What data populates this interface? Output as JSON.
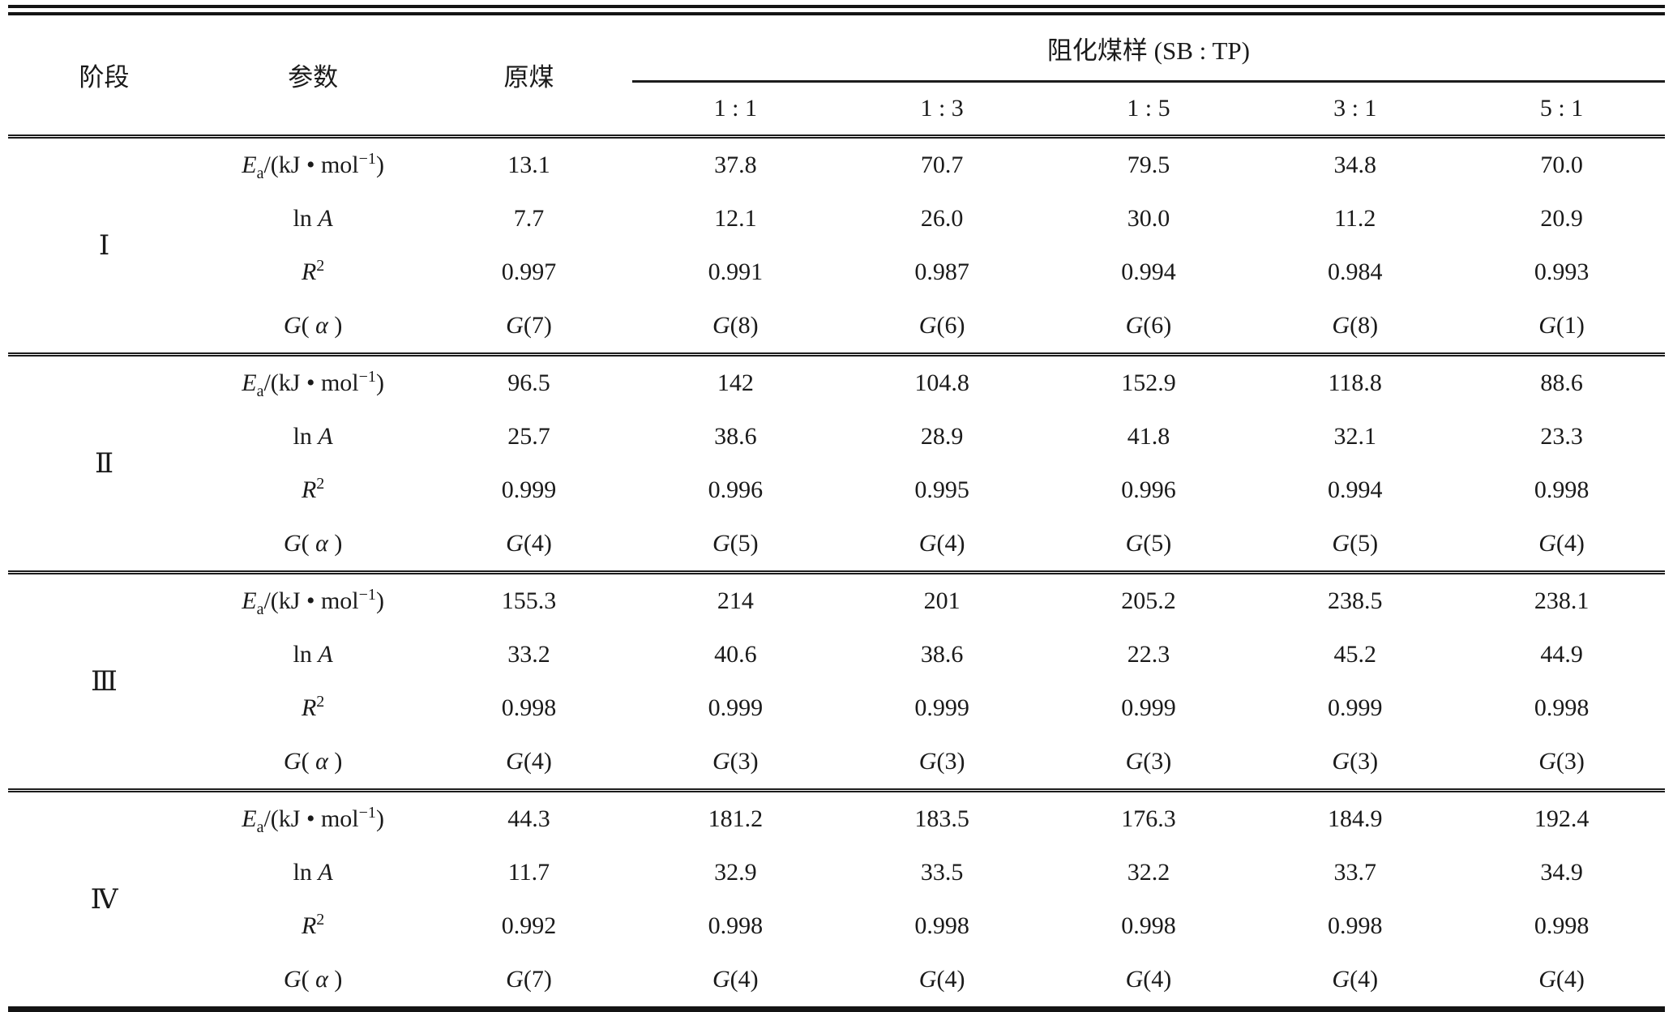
{
  "table": {
    "header": {
      "stage": "阶段",
      "param": "参数",
      "raw_coal": "原煤",
      "spanner": "阻化煤样 (SB : TP)",
      "ratios": [
        "1 : 1",
        "1 : 3",
        "1 : 5",
        "3 : 1",
        "5 : 1"
      ]
    },
    "param_labels": [
      {
        "id": "Ea",
        "segments": [
          {
            "t": "i",
            "v": "E"
          },
          {
            "t": "sub",
            "v": "a"
          },
          {
            "t": "n",
            "v": "/(kJ • mol"
          },
          {
            "t": "sup",
            "v": "−1"
          },
          {
            "t": "n",
            "v": ")"
          }
        ]
      },
      {
        "id": "lnA",
        "segments": [
          {
            "t": "n",
            "v": "ln "
          },
          {
            "t": "i",
            "v": "A"
          }
        ]
      },
      {
        "id": "R2",
        "segments": [
          {
            "t": "i",
            "v": "R"
          },
          {
            "t": "sup",
            "v": "2"
          }
        ]
      },
      {
        "id": "G-alpha",
        "segments": [
          {
            "t": "i",
            "v": "G"
          },
          {
            "t": "n",
            "v": "( "
          },
          {
            "t": "i",
            "v": "α"
          },
          {
            "t": "n",
            "v": " )"
          }
        ]
      }
    ],
    "stages": [
      {
        "label": "Ⅰ",
        "rows": [
          [
            "13.1",
            "37.8",
            "70.7",
            "79.5",
            "34.8",
            "70.0"
          ],
          [
            "7.7",
            "12.1",
            "26.0",
            "30.0",
            "11.2",
            "20.9"
          ],
          [
            "0.997",
            "0.991",
            "0.987",
            "0.994",
            "0.984",
            "0.993"
          ],
          [
            "G(7)",
            "G(8)",
            "G(6)",
            "G(6)",
            "G(8)",
            "G(1)"
          ]
        ]
      },
      {
        "label": "Ⅱ",
        "rows": [
          [
            "96.5",
            "142",
            "104.8",
            "152.9",
            "118.8",
            "88.6"
          ],
          [
            "25.7",
            "38.6",
            "28.9",
            "41.8",
            "32.1",
            "23.3"
          ],
          [
            "0.999",
            "0.996",
            "0.995",
            "0.996",
            "0.994",
            "0.998"
          ],
          [
            "G(4)",
            "G(5)",
            "G(4)",
            "G(5)",
            "G(5)",
            "G(4)"
          ]
        ]
      },
      {
        "label": "Ⅲ",
        "rows": [
          [
            "155.3",
            "214",
            "201",
            "205.2",
            "238.5",
            "238.1"
          ],
          [
            "33.2",
            "40.6",
            "38.6",
            "22.3",
            "45.2",
            "44.9"
          ],
          [
            "0.998",
            "0.999",
            "0.999",
            "0.999",
            "0.999",
            "0.998"
          ],
          [
            "G(4)",
            "G(3)",
            "G(3)",
            "G(3)",
            "G(3)",
            "G(3)"
          ]
        ]
      },
      {
        "label": "Ⅳ",
        "rows": [
          [
            "44.3",
            "181.2",
            "183.5",
            "176.3",
            "184.9",
            "192.4"
          ],
          [
            "11.7",
            "32.9",
            "33.5",
            "32.2",
            "33.7",
            "34.9"
          ],
          [
            "0.992",
            "0.998",
            "0.998",
            "0.998",
            "0.998",
            "0.998"
          ],
          [
            "G(7)",
            "G(4)",
            "G(4)",
            "G(4)",
            "G(4)",
            "G(4)"
          ]
        ]
      }
    ]
  }
}
